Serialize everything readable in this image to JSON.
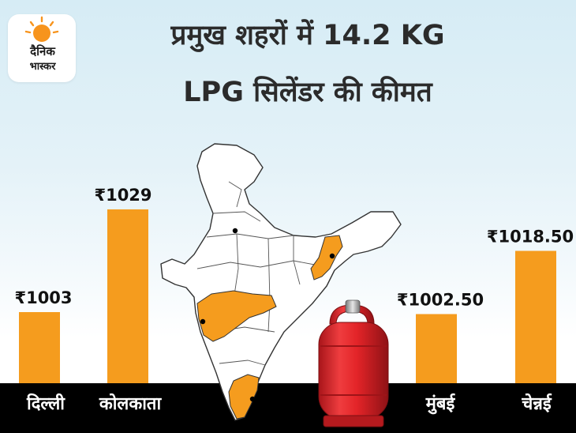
{
  "brand": {
    "line1": "दैनिक",
    "line2": "भास्कर",
    "accent": "#f7941d"
  },
  "title": {
    "line1": "प्रमुख शहरों में 14.2 KG",
    "line2": "LPG सिलेंडर की कीमत"
  },
  "colors": {
    "bar": "#f59c1e",
    "band": "#000000",
    "map_highlight": "#f59c1e",
    "cylinder": "#e32428"
  },
  "chart_data": {
    "type": "bar",
    "categories": [
      "दिल्ली",
      "कोलकाता",
      "मुंबई",
      "चेन्नई"
    ],
    "values": [
      1003,
      1029,
      1002.5,
      1018.5
    ],
    "value_labels": [
      "₹1003",
      "₹1029",
      "₹1002.50",
      "₹1018.50"
    ],
    "unit": "₹",
    "grid": false,
    "legend": "none"
  },
  "illustration": {
    "map_icon": "india-map-icon",
    "cylinder_icon": "lpg-cylinder-icon"
  }
}
